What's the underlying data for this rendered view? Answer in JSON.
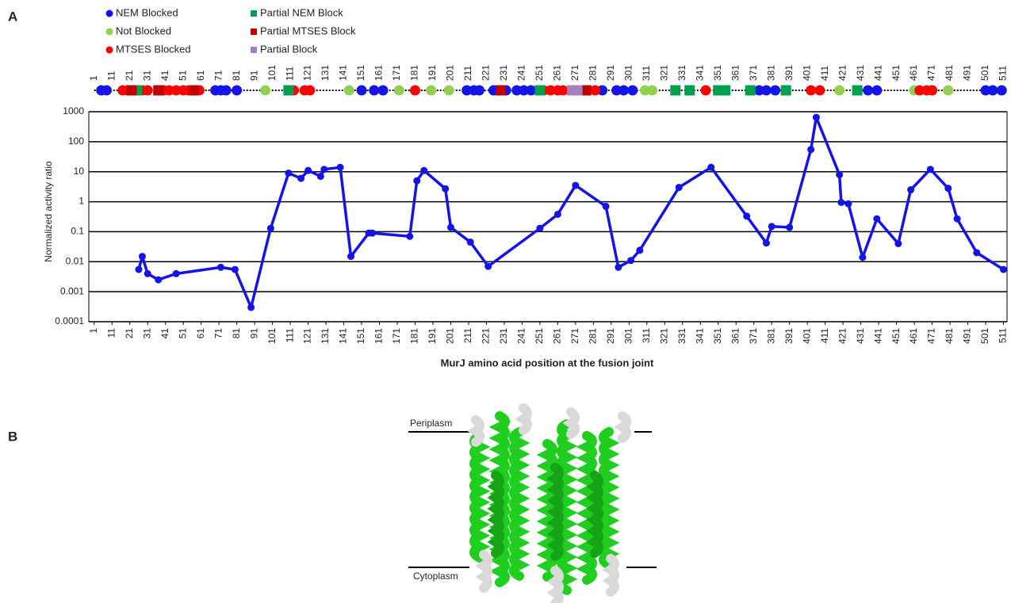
{
  "panel_labels": [
    "A",
    "B"
  ],
  "structure": {
    "labels": [
      "Periplasm",
      "Cytoplasm"
    ]
  },
  "chart_data": {
    "type": "line",
    "ylabel": "Normalized activity ratio",
    "xlabel": "MurJ amino acid position at the fusion joint",
    "color": "#1414e6",
    "ylog": true,
    "grid": true,
    "xlim": [
      -2,
      513
    ],
    "ylim": [
      0.0001,
      1000
    ],
    "yticks": [
      0.0001,
      0.001,
      0.01,
      0.1,
      1,
      10,
      100,
      1000
    ],
    "xticks": [
      1,
      11,
      21,
      31,
      41,
      51,
      61,
      71,
      81,
      91,
      101,
      111,
      121,
      131,
      141,
      151,
      161,
      171,
      181,
      191,
      201,
      211,
      221,
      231,
      241,
      251,
      261,
      271,
      281,
      291,
      301,
      311,
      321,
      331,
      341,
      351,
      361,
      371,
      381,
      391,
      401,
      411,
      421,
      431,
      441,
      451,
      461,
      471,
      481,
      491,
      501,
      511
    ],
    "x": [
      26,
      28,
      31,
      37,
      47,
      72,
      80,
      89,
      100,
      110,
      117,
      121,
      128,
      130,
      139,
      145,
      155,
      157,
      178,
      182,
      186,
      198,
      201,
      212,
      222,
      251,
      261,
      271,
      288,
      295,
      302,
      307,
      329,
      347,
      367,
      378,
      381,
      391,
      403,
      406,
      419,
      420,
      424,
      432,
      440,
      452,
      459,
      470,
      480,
      485,
      496,
      511
    ],
    "values": [
      0.0055,
      0.015,
      0.004,
      0.0025,
      0.004,
      0.0065,
      0.0055,
      0.0003,
      0.13,
      9,
      6,
      11,
      7,
      12,
      14,
      0.015,
      0.09,
      0.09,
      0.07,
      5,
      11,
      2.7,
      0.14,
      0.045,
      0.007,
      0.13,
      0.38,
      3.5,
      0.7,
      0.0065,
      0.011,
      0.024,
      3,
      14,
      0.33,
      0.042,
      0.15,
      0.14,
      55,
      650,
      8,
      0.95,
      0.85,
      0.014,
      0.27,
      0.04,
      2.5,
      12,
      2.8,
      0.27,
      0.02,
      0.0055
    ],
    "marker_track": {
      "series": [
        {
          "name": "NEM Blocked",
          "color": "#1414e6",
          "shape": "circle",
          "x": [
            5,
            8,
            69,
            72,
            75,
            81,
            151,
            158,
            163,
            210,
            214,
            217,
            225,
            232,
            238,
            242,
            246,
            286,
            294,
            298,
            303,
            374,
            378,
            383,
            435,
            440,
            501,
            505,
            510
          ]
        },
        {
          "name": "Not Blocked",
          "color": "#92d050",
          "shape": "circle",
          "x": [
            97,
            144,
            172,
            190,
            200,
            310,
            314,
            419,
            461,
            480
          ]
        },
        {
          "name": "MTSES Blocked",
          "color": "#ff0000",
          "shape": "circle",
          "x": [
            17,
            20,
            28,
            31,
            40,
            43,
            47,
            51,
            54,
            60,
            113,
            119,
            122,
            181,
            253,
            257,
            261,
            264,
            282,
            344,
            403,
            408,
            464,
            468,
            471
          ]
        },
        {
          "name": "Partial NEM Block",
          "color": "#00a050",
          "shape": "square",
          "x": [
            25,
            110,
            251,
            327,
            335,
            351,
            355,
            369,
            389,
            429
          ]
        },
        {
          "name": "Partial MTSES Block",
          "color": "#c00000",
          "shape": "square",
          "x": [
            22,
            37,
            57,
            229,
            277
          ]
        },
        {
          "name": "Partial Block",
          "color": "#a77fc0",
          "shape": "square",
          "x": [
            269,
            272
          ]
        }
      ]
    }
  }
}
